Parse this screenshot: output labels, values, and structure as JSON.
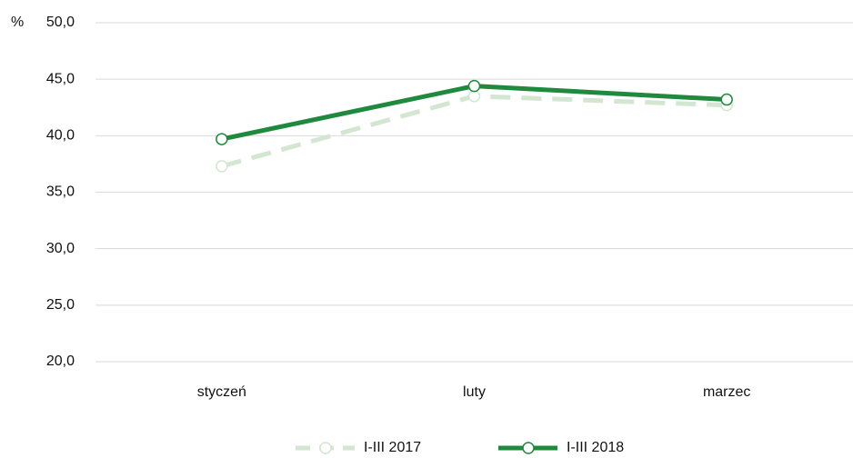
{
  "chart_data": {
    "type": "line",
    "ylabel": "%",
    "categories": [
      "styczeń",
      "luty",
      "marzec"
    ],
    "series": [
      {
        "name": "I-III 2017",
        "color": "#d3e6d1",
        "dashed": true,
        "values": [
          37.3,
          43.5,
          42.7
        ]
      },
      {
        "name": "I-III 2018",
        "color": "#1f8a3e",
        "dashed": false,
        "values": [
          39.7,
          44.4,
          43.2
        ]
      }
    ],
    "ylim": [
      20,
      50
    ],
    "yticks": [
      {
        "value": 20,
        "label": "20,0"
      },
      {
        "value": 25,
        "label": "25,0"
      },
      {
        "value": 30,
        "label": "30,0"
      },
      {
        "value": 35,
        "label": "35,0"
      },
      {
        "value": 40,
        "label": "40,0"
      },
      {
        "value": 45,
        "label": "45,0"
      },
      {
        "value": 50,
        "label": "50,0"
      }
    ],
    "grid": true,
    "legend": "bottom"
  }
}
